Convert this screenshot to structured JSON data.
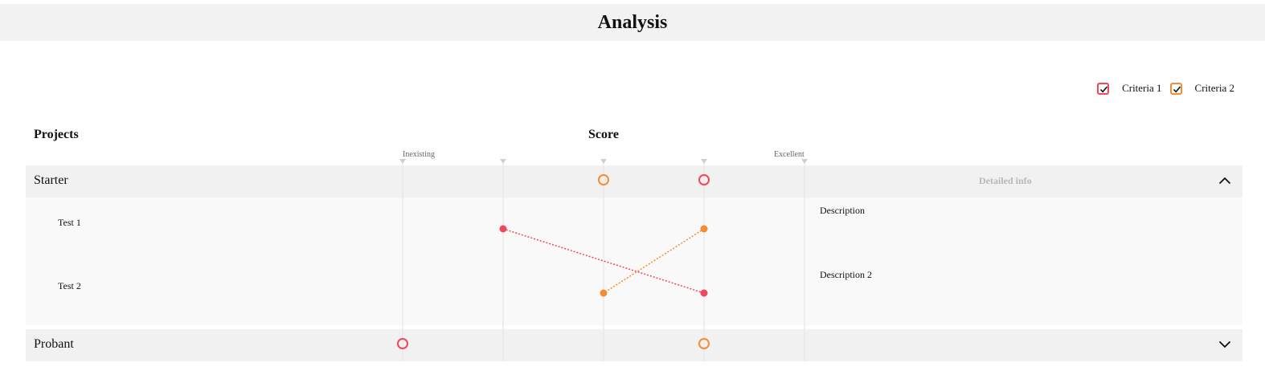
{
  "page": {
    "title": "Analysis"
  },
  "legend": [
    {
      "label": "Criteria 1",
      "color": "#f0475b",
      "checked": true
    },
    {
      "label": "Criteria 2",
      "color": "#f58b34",
      "checked": true
    }
  ],
  "headers": {
    "projects": "Projects",
    "score": "Score"
  },
  "scale": {
    "min_label": "Inexisting",
    "max_label": "Excellent",
    "levels": [
      1,
      2,
      3,
      4,
      5
    ]
  },
  "detail_label": "Detailed info",
  "groups": [
    {
      "name": "Starter",
      "expanded": true,
      "scores": {
        "criteria1": 4,
        "criteria2": 3
      },
      "tests": [
        {
          "name": "Test 1",
          "description": "Description",
          "scores": {
            "criteria1": 2,
            "criteria2": 4
          }
        },
        {
          "name": "Test 2",
          "description": "Description 2",
          "scores": {
            "criteria1": 4,
            "criteria2": 3
          }
        }
      ]
    },
    {
      "name": "Probant",
      "expanded": false,
      "scores": {
        "criteria1": 1,
        "criteria2": 4
      }
    }
  ],
  "colors": {
    "criteria1": "#f0475b",
    "criteria2": "#f58b34",
    "grid": "#e2e2e2",
    "tick": "#cfcfcf"
  }
}
